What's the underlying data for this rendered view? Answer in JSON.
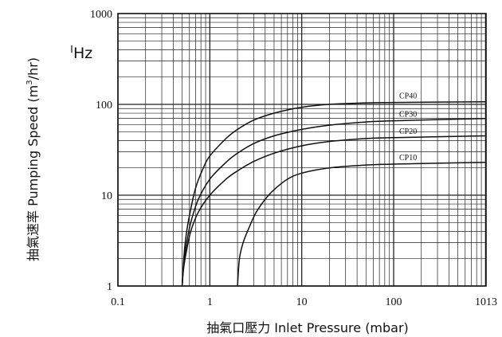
{
  "chart_data": {
    "type": "line",
    "title": "",
    "note": "Hz",
    "xlabel": "抽氣口壓力 Inlet Pressure (mbar)",
    "ylabel_prefix": "抽氣速率 Pumping Speed (m",
    "ylabel_sup": "3",
    "ylabel_suffix": "/hr)",
    "x_scale": "log",
    "y_scale": "log",
    "xlim": [
      0.1,
      1013
    ],
    "ylim": [
      1,
      1000
    ],
    "x_ticks": [
      {
        "value": 0.1,
        "label": "0.1"
      },
      {
        "value": 1,
        "label": "1"
      },
      {
        "value": 10,
        "label": "10"
      },
      {
        "value": 100,
        "label": "100"
      },
      {
        "value": 1013,
        "label": "1013"
      }
    ],
    "y_ticks": [
      {
        "value": 1,
        "label": "1"
      },
      {
        "value": 10,
        "label": "10"
      },
      {
        "value": 100,
        "label": "100"
      },
      {
        "value": 1000,
        "label": "1000"
      }
    ],
    "grid": true,
    "series": [
      {
        "name": "CP40",
        "x": [
          0.5,
          0.52,
          0.55,
          0.6,
          0.7,
          0.85,
          1,
          1.5,
          2,
          3,
          5,
          10,
          20,
          50,
          100,
          1013
        ],
        "y": [
          1,
          2,
          3.5,
          6,
          12,
          20,
          27,
          42,
          53,
          67,
          80,
          93,
          100,
          104,
          105,
          107
        ]
      },
      {
        "name": "CP30",
        "x": [
          0.5,
          0.52,
          0.56,
          0.62,
          0.75,
          1,
          1.5,
          2,
          3,
          5,
          10,
          20,
          50,
          100,
          1013
        ],
        "y": [
          1,
          1.8,
          3,
          5,
          9,
          15,
          23,
          29,
          37,
          45,
          53,
          59,
          64,
          66,
          70
        ]
      },
      {
        "name": "CP20",
        "x": [
          0.5,
          0.52,
          0.56,
          0.62,
          0.75,
          1,
          1.5,
          2,
          3,
          5,
          10,
          20,
          50,
          100,
          1013
        ],
        "y": [
          1,
          1.6,
          2.5,
          4,
          6.5,
          10,
          15,
          18.5,
          23.5,
          29,
          35,
          39,
          42,
          43,
          45
        ]
      },
      {
        "name": "CP10",
        "x": [
          2,
          2.1,
          2.3,
          2.7,
          3.2,
          4,
          5,
          7,
          10,
          20,
          50,
          100,
          200,
          1013
        ],
        "y": [
          1,
          2,
          3,
          4.5,
          6.5,
          9,
          11.5,
          15,
          17.5,
          20,
          21.5,
          22,
          22.3,
          23
        ]
      }
    ]
  }
}
